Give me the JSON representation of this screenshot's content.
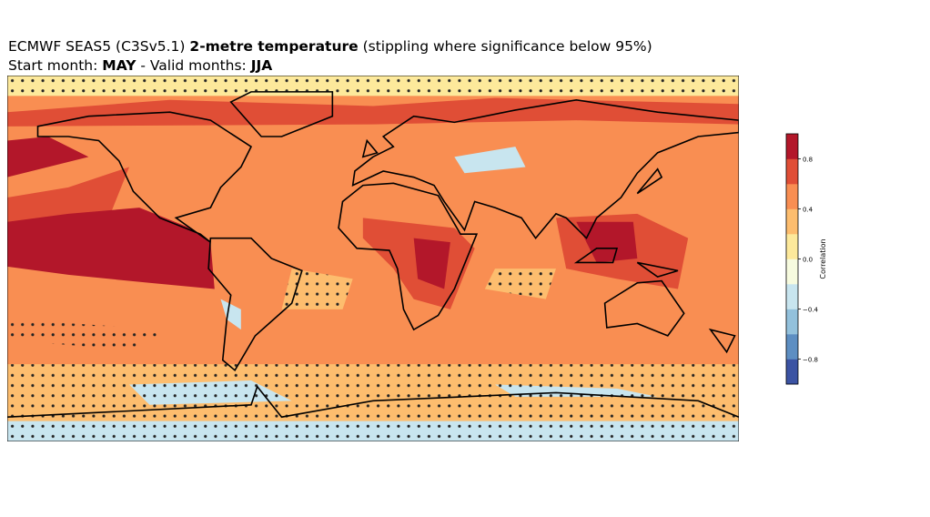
{
  "header": {
    "line1": {
      "model": "ECMWF SEAS5 (C3Sv5.1)",
      "variable": "2-metre temperature",
      "note": "(stippling where significance below 95%)"
    },
    "line2": {
      "start_label": "Start month:",
      "start": "MAY",
      "valid_label": "- Valid months:",
      "valid": "JJA"
    }
  },
  "colorbar": {
    "label": "Correlation",
    "lim": [
      -1,
      1
    ],
    "colors": [
      "#3b53a3",
      "#5d8ec2",
      "#93c1dc",
      "#c8e5ef",
      "#f7fbdf",
      "#fde99b",
      "#fdbd6e",
      "#f98e52",
      "#e04e36",
      "#b3172a"
    ],
    "ticks": [
      {
        "value": -0.8,
        "label": "−0.8"
      },
      {
        "value": -0.4,
        "label": "−0.4"
      },
      {
        "value": 0,
        "label": "0.0"
      },
      {
        "value": 0.4,
        "label": "0.4"
      },
      {
        "value": 0.8,
        "label": "0.8"
      }
    ]
  }
}
